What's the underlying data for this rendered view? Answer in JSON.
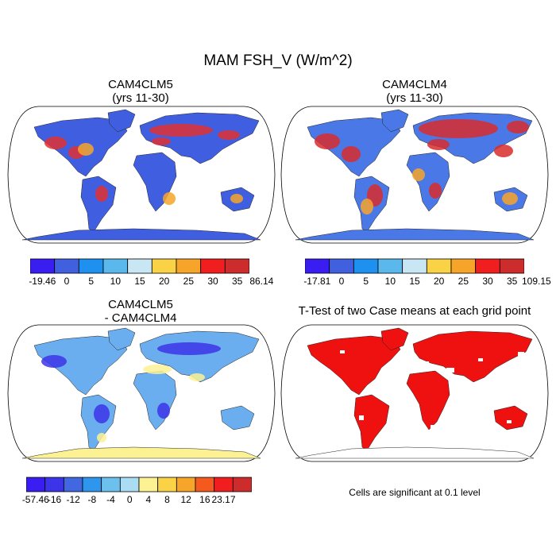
{
  "title": "MAM FSH_V (W/m^2)",
  "panels": [
    {
      "title_line1": "CAM4CLM5",
      "title_line2": "(yrs 11-30)"
    },
    {
      "title_line1": "CAM4CLM4",
      "title_line2": "(yrs 11-30)"
    },
    {
      "title_line1": "CAM4CLM5",
      "title_line2": "- CAM4CLM4"
    },
    {
      "title_line1": "T-Test of two Case means at each grid point",
      "title_line2": ""
    }
  ],
  "colorbars": [
    {
      "labels": [
        "-19.46",
        "0",
        "5",
        "10",
        "15",
        "20",
        "25",
        "30",
        "35",
        "86.14"
      ],
      "colors": [
        "#3a1df0",
        "#4160e0",
        "#1e90f0",
        "#5ab8ec",
        "#c8e6f4",
        "#fad245",
        "#f7a42a",
        "#f01e1e",
        "#cd2c2c"
      ]
    },
    {
      "labels": [
        "-17.81",
        "0",
        "5",
        "10",
        "15",
        "20",
        "25",
        "30",
        "35",
        "109.15"
      ],
      "colors": [
        "#3a1df0",
        "#4160e0",
        "#1e90f0",
        "#5ab8ec",
        "#c8e6f4",
        "#fad245",
        "#f7a42a",
        "#f01e1e",
        "#cd2c2c"
      ]
    },
    {
      "labels": [
        "-57.46",
        "-16",
        "-12",
        "-8",
        "-4",
        "0",
        "4",
        "8",
        "12",
        "16",
        "23.17"
      ],
      "colors": [
        "#3a1df0",
        "#3c34e8",
        "#4168e0",
        "#2f96ee",
        "#6cc0ee",
        "#aadcf4",
        "#fcf294",
        "#fad245",
        "#f7a42a",
        "#f45a1e",
        "#f01e1e",
        "#cd2c2c"
      ]
    }
  ],
  "significance_note": "Cells are significant at 0.1 level",
  "map_colors": {
    "clm5_land": "#3f5fe0",
    "clm5_hot": "#e03030",
    "clm4_land": "#4a78e6",
    "clm4_hot": "#d82c2c",
    "diff_land": "#6aaef0",
    "diff_yellow": "#fcf294",
    "ttest_sig": "#ef1010"
  }
}
